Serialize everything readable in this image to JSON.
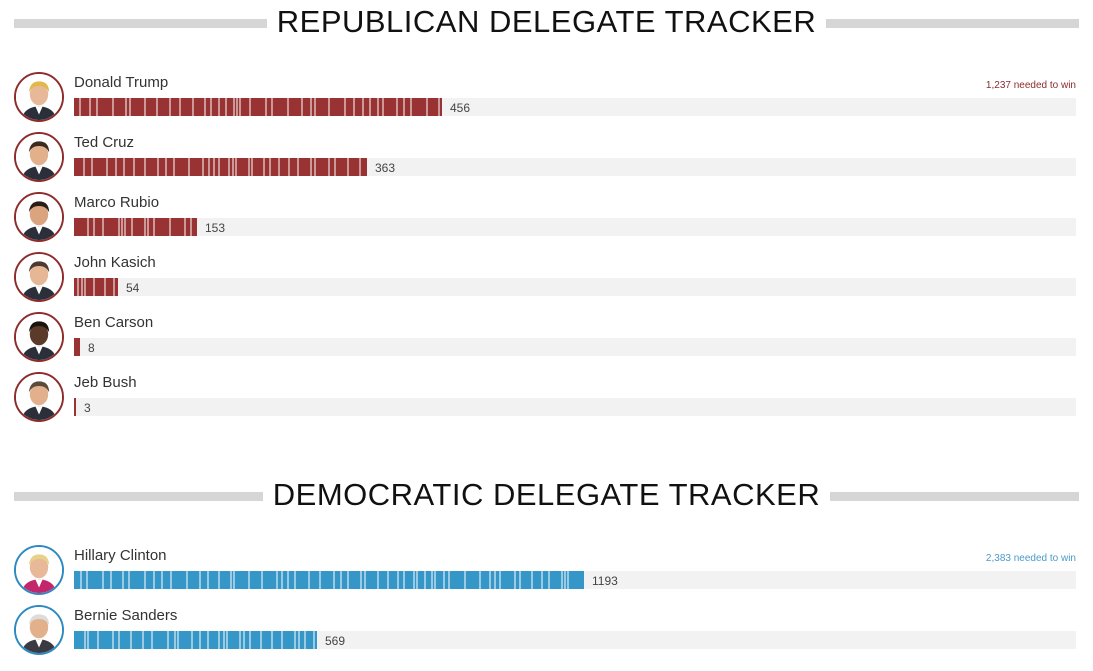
{
  "republican": {
    "title": "REPUBLICAN DELEGATE TRACKER",
    "needed": "1,237 needed to win",
    "color": "#993333",
    "neededColor": "#8e2b2b",
    "candidates": [
      {
        "name": "Donald Trump",
        "delegates": 456,
        "label": "456",
        "icon": "trump-portrait"
      },
      {
        "name": "Ted Cruz",
        "delegates": 363,
        "label": "363",
        "icon": "cruz-portrait"
      },
      {
        "name": "Marco Rubio",
        "delegates": 153,
        "label": "153",
        "icon": "rubio-portrait"
      },
      {
        "name": "John Kasich",
        "delegates": 54,
        "label": "54",
        "icon": "kasich-portrait"
      },
      {
        "name": "Ben Carson",
        "delegates": 8,
        "label": "8",
        "icon": "carson-portrait"
      },
      {
        "name": "Jeb Bush",
        "delegates": 3,
        "label": "3",
        "icon": "bush-portrait"
      }
    ]
  },
  "democratic": {
    "title": "DEMOCRATIC DELEGATE TRACKER",
    "needed": "2,383 needed to win",
    "color": "#3596c8",
    "neededColor": "#4a9ac9",
    "candidates": [
      {
        "name": "Hillary Clinton",
        "delegates": 1193,
        "label": "1193",
        "icon": "clinton-portrait"
      },
      {
        "name": "Bernie Sanders",
        "delegates": 569,
        "label": "569",
        "icon": "sanders-portrait"
      }
    ]
  },
  "chart_data": [
    {
      "type": "bar",
      "title": "REPUBLICAN DELEGATE TRACKER",
      "categories": [
        "Donald Trump",
        "Ted Cruz",
        "Marco Rubio",
        "John Kasich",
        "Ben Carson",
        "Jeb Bush"
      ],
      "values": [
        456,
        363,
        153,
        54,
        8,
        3
      ],
      "annotation": "1,237 needed to win",
      "xlim": [
        0,
        1237
      ],
      "orientation": "horizontal"
    },
    {
      "type": "bar",
      "title": "DEMOCRATIC DELEGATE TRACKER",
      "categories": [
        "Hillary Clinton",
        "Bernie Sanders"
      ],
      "values": [
        1193,
        569
      ],
      "annotation": "2,383 needed to win",
      "xlim": [
        0,
        2383
      ],
      "orientation": "horizontal"
    }
  ]
}
